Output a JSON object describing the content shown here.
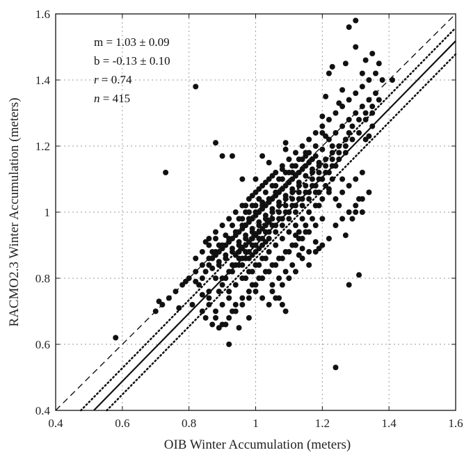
{
  "chart_data": {
    "type": "scatter",
    "xlabel": "OIB Winter Accumulation (meters)",
    "ylabel": "RACMO2.3 Winter Accumulation (meters)",
    "xlim": [
      0.4,
      1.6
    ],
    "ylim": [
      0.4,
      1.6
    ],
    "grid": true,
    "xticks": [
      "0.4",
      "0.6",
      "0.8",
      "1",
      "1.2",
      "1.4",
      "1.6"
    ],
    "yticks": [
      "0.4",
      "0.6",
      "0.8",
      "1",
      "1.2",
      "1.4",
      "1.6"
    ],
    "annotations": [
      {
        "id": "slope",
        "text": "m = 1.03 ± 0.09"
      },
      {
        "id": "intercept",
        "text": "b = -0.13 ± 0.10"
      },
      {
        "id": "r",
        "var": "r",
        "rest": " = 0.74"
      },
      {
        "id": "n",
        "var": "n",
        "rest": " = 415"
      }
    ],
    "lines": [
      {
        "name": "one-to-one",
        "style": "dashed",
        "slope": 1.0,
        "intercept": 0.0
      },
      {
        "name": "fit",
        "style": "solid",
        "slope": 1.03,
        "intercept": -0.13
      },
      {
        "name": "fit-upper",
        "style": "dotted",
        "slope": 1.03,
        "intercept": -0.09
      },
      {
        "name": "fit-lower",
        "style": "dotted",
        "slope": 1.03,
        "intercept": -0.17
      }
    ],
    "points": [
      [
        0.58,
        0.62
      ],
      [
        0.71,
        0.73
      ],
      [
        0.73,
        1.12
      ],
      [
        0.77,
        0.71
      ],
      [
        0.79,
        0.79
      ],
      [
        0.81,
        0.72
      ],
      [
        0.82,
        0.79
      ],
      [
        0.82,
        1.38
      ],
      [
        0.84,
        0.7
      ],
      [
        0.85,
        0.68
      ],
      [
        0.85,
        0.91
      ],
      [
        0.86,
        0.74
      ],
      [
        0.87,
        0.66
      ],
      [
        0.88,
        1.21
      ],
      [
        0.89,
        0.65
      ],
      [
        0.9,
        1.17
      ],
      [
        0.91,
        0.66
      ],
      [
        0.92,
        0.6
      ],
      [
        0.93,
        1.17
      ],
      [
        0.95,
        0.65
      ],
      [
        0.96,
        1.1
      ],
      [
        0.98,
        0.68
      ],
      [
        1.01,
        1.04
      ],
      [
        1.02,
        1.17
      ],
      [
        1.04,
        1.15
      ],
      [
        1.05,
        0.78
      ],
      [
        1.07,
        0.74
      ],
      [
        1.08,
        0.72
      ],
      [
        1.09,
        0.7
      ],
      [
        1.09,
        1.21
      ],
      [
        1.09,
        1.19
      ],
      [
        1.12,
        0.93
      ],
      [
        1.13,
        0.87
      ],
      [
        1.14,
        0.89
      ],
      [
        1.16,
        0.88
      ],
      [
        1.18,
        0.91
      ],
      [
        1.19,
        0.89
      ],
      [
        1.2,
        1.29
      ],
      [
        1.21,
        1.35
      ],
      [
        1.22,
        1.42
      ],
      [
        1.23,
        1.44
      ],
      [
        1.24,
        0.53
      ],
      [
        1.25,
        1.33
      ],
      [
        1.26,
        1.37
      ],
      [
        1.27,
        1.45
      ],
      [
        1.28,
        0.78
      ],
      [
        1.28,
        1.56
      ],
      [
        1.3,
        1.58
      ],
      [
        1.31,
        0.81
      ],
      [
        1.31,
        1.04
      ],
      [
        1.32,
        1.42
      ],
      [
        1.33,
        1.46
      ],
      [
        1.35,
        1.48
      ],
      [
        1.37,
        1.45
      ],
      [
        1.38,
        1.4
      ],
      [
        1.41,
        1.4
      ],
      [
        1.28,
        1.24
      ],
      [
        1.33,
        1.22
      ],
      [
        1.35,
        1.26
      ],
      [
        1.3,
        1.5
      ],
      [
        1.25,
        1.02
      ],
      [
        1.27,
        0.93
      ],
      [
        1.21,
        1.23
      ],
      [
        1.23,
        1.2
      ],
      [
        1.17,
        1.16
      ],
      [
        1.15,
        1.17
      ],
      [
        1.19,
        1.06
      ],
      [
        1.22,
        1.07
      ],
      [
        1.29,
        0.98
      ],
      [
        1.3,
        1.0
      ],
      [
        1.32,
        1.0
      ],
      [
        1.34,
        1.23
      ],
      [
        1.26,
        1.1
      ],
      [
        1.24,
        1.14
      ],
      [
        1.06,
        1.08
      ],
      [
        1.08,
        1.13
      ],
      [
        1.11,
        1.12
      ],
      [
        0.86,
        0.92
      ],
      [
        0.88,
        0.94
      ],
      [
        0.9,
        0.89
      ],
      [
        0.92,
        0.91
      ],
      [
        0.94,
        0.93
      ],
      [
        0.96,
        0.95
      ],
      [
        0.98,
        0.97
      ],
      [
        1.0,
        0.99
      ],
      [
        1.02,
        1.01
      ],
      [
        1.04,
        1.03
      ],
      [
        1.06,
        1.05
      ],
      [
        1.08,
        1.07
      ],
      [
        1.1,
        1.09
      ],
      [
        1.12,
        1.11
      ],
      [
        1.14,
        1.13
      ],
      [
        1.16,
        1.15
      ],
      [
        1.18,
        1.17
      ],
      [
        1.2,
        1.19
      ],
      [
        0.87,
        0.83
      ],
      [
        0.89,
        0.85
      ],
      [
        0.91,
        0.87
      ],
      [
        0.93,
        0.89
      ],
      [
        0.95,
        0.91
      ],
      [
        0.97,
        0.93
      ],
      [
        0.99,
        0.95
      ],
      [
        1.01,
        0.97
      ],
      [
        1.03,
        0.99
      ],
      [
        1.05,
        1.01
      ],
      [
        1.07,
        1.03
      ],
      [
        1.09,
        1.05
      ],
      [
        1.11,
        1.07
      ],
      [
        1.13,
        1.09
      ],
      [
        1.15,
        1.11
      ],
      [
        1.17,
        1.13
      ],
      [
        1.19,
        1.15
      ],
      [
        0.9,
        0.8
      ],
      [
        0.92,
        0.82
      ],
      [
        0.94,
        0.84
      ],
      [
        0.96,
        0.86
      ],
      [
        0.98,
        0.88
      ],
      [
        1.0,
        0.9
      ],
      [
        1.02,
        0.92
      ],
      [
        1.04,
        0.94
      ],
      [
        1.06,
        0.96
      ],
      [
        1.08,
        0.98
      ],
      [
        1.1,
        1.0
      ],
      [
        1.12,
        1.02
      ],
      [
        1.14,
        1.04
      ],
      [
        1.16,
        1.06
      ],
      [
        1.18,
        1.08
      ],
      [
        1.2,
        1.1
      ],
      [
        1.22,
        1.12
      ],
      [
        0.92,
        0.76
      ],
      [
        0.94,
        0.78
      ],
      [
        0.96,
        0.8
      ],
      [
        0.98,
        0.82
      ],
      [
        1.0,
        0.84
      ],
      [
        1.02,
        0.86
      ],
      [
        1.04,
        0.88
      ],
      [
        1.06,
        0.9
      ],
      [
        1.08,
        0.92
      ],
      [
        1.1,
        0.94
      ],
      [
        1.12,
        0.96
      ],
      [
        1.14,
        0.98
      ],
      [
        1.16,
        1.0
      ],
      [
        1.18,
        1.02
      ],
      [
        1.2,
        1.04
      ],
      [
        1.22,
        1.06
      ],
      [
        0.94,
        0.72
      ],
      [
        0.96,
        0.74
      ],
      [
        0.98,
        0.76
      ],
      [
        1.0,
        0.78
      ],
      [
        1.02,
        0.8
      ],
      [
        1.04,
        0.82
      ],
      [
        1.06,
        0.84
      ],
      [
        1.08,
        0.86
      ],
      [
        1.1,
        0.88
      ],
      [
        1.12,
        0.9
      ],
      [
        1.14,
        0.92
      ],
      [
        1.16,
        0.94
      ],
      [
        1.18,
        0.96
      ],
      [
        1.2,
        0.98
      ],
      [
        0.95,
        0.98
      ],
      [
        0.97,
        1.0
      ],
      [
        0.99,
        1.02
      ],
      [
        1.01,
        1.04
      ],
      [
        1.03,
        1.06
      ],
      [
        1.05,
        1.08
      ],
      [
        1.07,
        1.1
      ],
      [
        1.09,
        1.12
      ],
      [
        1.11,
        1.14
      ],
      [
        1.13,
        1.16
      ],
      [
        1.15,
        1.18
      ],
      [
        0.93,
        0.96
      ],
      [
        0.91,
        0.93
      ],
      [
        0.89,
        0.9
      ],
      [
        0.88,
        0.87
      ],
      [
        0.87,
        0.86
      ],
      [
        0.86,
        0.84
      ],
      [
        0.85,
        0.82
      ],
      [
        0.84,
        0.8
      ],
      [
        0.83,
        0.78
      ],
      [
        0.88,
        0.8
      ],
      [
        0.9,
        0.78
      ],
      [
        0.92,
        0.74
      ],
      [
        0.93,
        0.7
      ],
      [
        0.9,
        0.72
      ],
      [
        0.88,
        0.7
      ],
      [
        0.86,
        0.76
      ],
      [
        0.84,
        0.75
      ],
      [
        0.89,
        0.76
      ],
      [
        0.91,
        0.8
      ],
      [
        0.93,
        0.84
      ],
      [
        0.95,
        0.88
      ],
      [
        0.97,
        0.9
      ],
      [
        0.99,
        0.92
      ],
      [
        1.01,
        0.94
      ],
      [
        1.03,
        0.96
      ],
      [
        1.05,
        0.98
      ],
      [
        1.07,
        1.0
      ],
      [
        1.09,
        1.02
      ],
      [
        1.11,
        1.04
      ],
      [
        1.13,
        1.06
      ],
      [
        1.15,
        1.08
      ],
      [
        1.17,
        1.1
      ],
      [
        1.19,
        1.12
      ],
      [
        1.21,
        1.14
      ],
      [
        1.23,
        1.16
      ],
      [
        1.25,
        1.18
      ],
      [
        1.27,
        1.2
      ],
      [
        1.29,
        1.22
      ],
      [
        1.31,
        1.24
      ],
      [
        1.33,
        1.28
      ],
      [
        1.35,
        1.3
      ],
      [
        1.36,
        1.36
      ],
      [
        1.34,
        1.34
      ],
      [
        1.32,
        1.32
      ],
      [
        1.3,
        1.3
      ],
      [
        1.28,
        1.28
      ],
      [
        1.26,
        1.26
      ],
      [
        1.24,
        1.24
      ],
      [
        1.22,
        1.22
      ],
      [
        0.96,
        0.84
      ],
      [
        0.98,
        0.86
      ],
      [
        1.0,
        0.88
      ],
      [
        1.02,
        0.9
      ],
      [
        1.04,
        0.92
      ],
      [
        1.06,
        0.94
      ],
      [
        1.08,
        0.96
      ],
      [
        1.1,
        0.98
      ],
      [
        1.12,
        1.0
      ],
      [
        1.14,
        1.02
      ],
      [
        1.16,
        1.04
      ],
      [
        1.18,
        1.06
      ],
      [
        0.95,
        0.9
      ],
      [
        0.97,
        0.92
      ],
      [
        0.99,
        0.94
      ],
      [
        1.01,
        0.96
      ],
      [
        1.03,
        0.98
      ],
      [
        1.05,
        1.0
      ],
      [
        1.07,
        1.02
      ],
      [
        1.09,
        1.04
      ],
      [
        1.11,
        1.06
      ],
      [
        1.13,
        1.08
      ],
      [
        0.94,
        0.87
      ],
      [
        0.96,
        0.89
      ],
      [
        0.98,
        0.91
      ],
      [
        1.0,
        0.93
      ],
      [
        1.02,
        0.95
      ],
      [
        1.04,
        0.97
      ],
      [
        0.93,
        0.82
      ],
      [
        0.95,
        0.84
      ],
      [
        0.97,
        0.86
      ],
      [
        0.99,
        0.87
      ],
      [
        1.01,
        0.89
      ],
      [
        1.03,
        0.91
      ],
      [
        0.97,
        0.8
      ],
      [
        0.99,
        0.82
      ],
      [
        1.01,
        0.84
      ],
      [
        1.03,
        0.86
      ],
      [
        0.99,
        0.78
      ],
      [
        1.01,
        0.8
      ],
      [
        1.03,
        0.82
      ],
      [
        1.05,
        0.84
      ],
      [
        1.07,
        0.86
      ],
      [
        1.09,
        0.88
      ],
      [
        1.11,
        0.9
      ],
      [
        1.13,
        0.92
      ],
      [
        1.15,
        0.94
      ],
      [
        1.05,
        0.76
      ],
      [
        1.07,
        0.8
      ],
      [
        1.09,
        0.82
      ],
      [
        1.11,
        0.84
      ],
      [
        0.96,
        0.98
      ],
      [
        0.98,
        1.0
      ],
      [
        1.0,
        1.02
      ],
      [
        1.02,
        1.03
      ],
      [
        0.99,
        1.05
      ],
      [
        1.01,
        1.07
      ],
      [
        1.03,
        1.09
      ],
      [
        1.05,
        1.11
      ],
      [
        1.0,
        1.1
      ],
      [
        0.97,
        1.02
      ],
      [
        1.18,
        0.88
      ],
      [
        1.2,
        0.9
      ],
      [
        1.22,
        0.92
      ],
      [
        1.24,
        0.96
      ],
      [
        1.26,
        0.98
      ],
      [
        1.28,
        1.0
      ],
      [
        1.3,
        1.02
      ],
      [
        1.32,
        1.04
      ],
      [
        1.34,
        1.06
      ],
      [
        1.24,
        1.04
      ],
      [
        1.26,
        1.06
      ],
      [
        1.28,
        1.08
      ],
      [
        1.3,
        1.1
      ],
      [
        1.32,
        1.12
      ],
      [
        1.23,
        1.1
      ],
      [
        1.21,
        1.08
      ],
      [
        1.19,
        1.02
      ],
      [
        1.17,
        0.98
      ],
      [
        1.15,
        0.96
      ],
      [
        1.13,
        0.94
      ],
      [
        1.14,
        0.86
      ],
      [
        1.16,
        0.84
      ],
      [
        1.12,
        0.82
      ],
      [
        1.1,
        0.8
      ],
      [
        1.08,
        0.78
      ],
      [
        1.06,
        0.74
      ],
      [
        1.04,
        0.72
      ],
      [
        1.02,
        0.74
      ],
      [
        1.0,
        0.76
      ],
      [
        0.98,
        0.74
      ],
      [
        0.96,
        0.72
      ],
      [
        0.94,
        0.7
      ],
      [
        0.92,
        0.68
      ],
      [
        0.9,
        0.66
      ],
      [
        0.88,
        0.68
      ],
      [
        0.86,
        0.72
      ],
      [
        0.89,
        0.84
      ],
      [
        0.91,
        0.86
      ],
      [
        0.93,
        0.88
      ],
      [
        0.95,
        0.86
      ],
      [
        0.97,
        0.88
      ],
      [
        0.99,
        0.9
      ],
      [
        1.01,
        0.92
      ],
      [
        1.03,
        0.94
      ],
      [
        1.05,
        0.96
      ],
      [
        1.07,
        0.98
      ],
      [
        1.09,
        1.0
      ],
      [
        1.11,
        1.02
      ],
      [
        1.13,
        1.04
      ],
      [
        1.15,
        1.06
      ],
      [
        1.17,
        1.08
      ],
      [
        1.19,
        1.1
      ],
      [
        1.21,
        1.12
      ],
      [
        1.23,
        1.14
      ],
      [
        1.25,
        1.16
      ],
      [
        1.27,
        1.18
      ],
      [
        1.2,
        1.26
      ],
      [
        1.18,
        1.24
      ],
      [
        1.16,
        1.22
      ],
      [
        1.14,
        1.2
      ],
      [
        1.12,
        1.18
      ],
      [
        1.1,
        1.16
      ],
      [
        1.08,
        1.14
      ],
      [
        1.06,
        1.12
      ],
      [
        1.04,
        1.1
      ],
      [
        1.02,
        1.08
      ],
      [
        1.0,
        1.06
      ],
      [
        0.98,
        1.04
      ],
      [
        0.96,
        1.02
      ],
      [
        0.94,
        1.0
      ],
      [
        0.92,
        0.98
      ],
      [
        0.9,
        0.96
      ],
      [
        0.88,
        0.92
      ],
      [
        0.86,
        0.9
      ],
      [
        0.84,
        0.88
      ],
      [
        0.82,
        0.86
      ],
      [
        0.87,
        0.88
      ],
      [
        0.89,
        0.88
      ],
      [
        0.91,
        0.9
      ],
      [
        0.93,
        0.92
      ],
      [
        0.95,
        0.94
      ],
      [
        0.97,
        0.96
      ],
      [
        0.99,
        0.98
      ],
      [
        1.01,
        1.0
      ],
      [
        1.03,
        1.02
      ],
      [
        1.05,
        1.04
      ],
      [
        1.07,
        1.06
      ],
      [
        1.09,
        1.08
      ],
      [
        1.11,
        1.1
      ],
      [
        1.13,
        1.12
      ],
      [
        1.15,
        1.14
      ],
      [
        1.17,
        1.12
      ],
      [
        1.19,
        1.14
      ],
      [
        1.21,
        1.16
      ],
      [
        1.23,
        1.18
      ],
      [
        1.25,
        1.2
      ],
      [
        1.27,
        1.22
      ],
      [
        1.29,
        1.26
      ],
      [
        1.31,
        1.28
      ],
      [
        1.33,
        1.3
      ],
      [
        1.35,
        1.32
      ],
      [
        1.37,
        1.34
      ],
      [
        1.36,
        1.42
      ],
      [
        1.34,
        1.4
      ],
      [
        1.32,
        1.38
      ],
      [
        1.3,
        1.36
      ],
      [
        1.28,
        1.34
      ],
      [
        1.26,
        1.32
      ],
      [
        1.24,
        1.3
      ],
      [
        1.22,
        1.28
      ],
      [
        1.2,
        1.24
      ],
      [
        1.18,
        1.2
      ],
      [
        1.16,
        1.18
      ],
      [
        1.14,
        1.16
      ],
      [
        1.12,
        1.14
      ],
      [
        1.1,
        1.12
      ],
      [
        1.08,
        1.1
      ],
      [
        1.06,
        1.06
      ],
      [
        1.04,
        1.04
      ],
      [
        1.02,
        1.02
      ],
      [
        1.0,
        1.0
      ],
      [
        0.98,
        0.98
      ],
      [
        0.96,
        0.96
      ],
      [
        0.94,
        0.94
      ],
      [
        0.92,
        0.92
      ],
      [
        0.9,
        0.9
      ],
      [
        0.88,
        0.88
      ],
      [
        0.86,
        0.86
      ],
      [
        0.84,
        0.84
      ],
      [
        0.82,
        0.82
      ],
      [
        0.8,
        0.8
      ],
      [
        0.78,
        0.78
      ],
      [
        0.76,
        0.76
      ],
      [
        0.74,
        0.74
      ],
      [
        0.72,
        0.72
      ],
      [
        0.7,
        0.7
      ]
    ]
  }
}
